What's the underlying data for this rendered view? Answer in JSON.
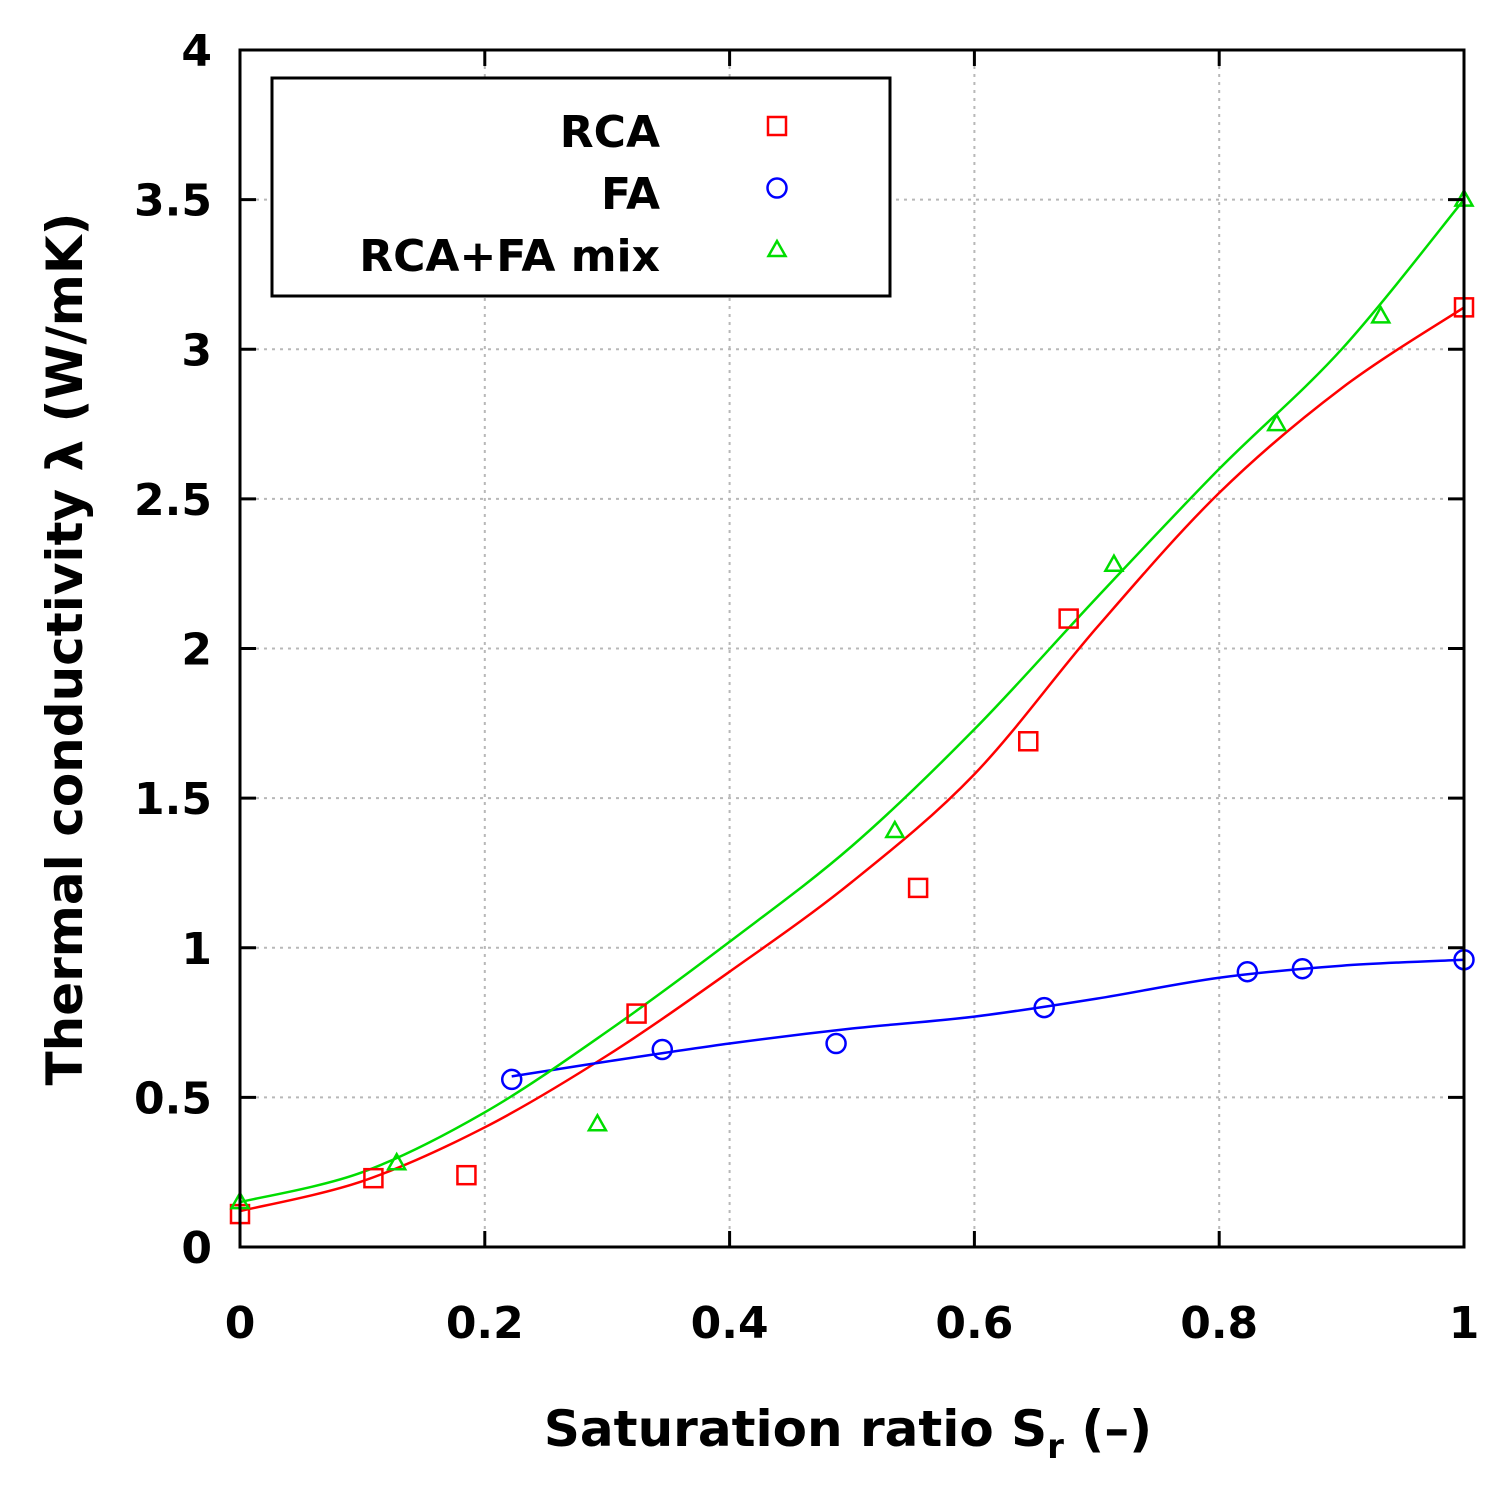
{
  "chart_data": {
    "type": "scatter",
    "title": "",
    "xlabel": "Saturation ratio S",
    "xlabel_subscript": "r",
    "xlabel_suffix": " (–)",
    "ylabel": "Thermal conductivity λ (W/mK)",
    "xlim": [
      0,
      1
    ],
    "ylim": [
      0,
      4
    ],
    "grid": true,
    "legend_position": "top-left",
    "x_ticks": [
      0,
      0.2,
      0.4,
      0.6,
      0.8,
      1
    ],
    "x_tick_labels": [
      "0",
      "0.2",
      "0.4",
      "0.6",
      "0.8",
      "1"
    ],
    "y_ticks": [
      0,
      0.5,
      1,
      1.5,
      2,
      2.5,
      3,
      3.5,
      4
    ],
    "y_tick_labels": [
      "0",
      "0.5",
      "1",
      "1.5",
      "2",
      "2.5",
      "3",
      "3.5",
      "4"
    ],
    "series": [
      {
        "name": "RCA",
        "color": "#ff0000",
        "marker": "square",
        "x": [
          0.0,
          0.109,
          0.185,
          0.324,
          0.554,
          0.644,
          0.677,
          1.0
        ],
        "y": [
          0.11,
          0.23,
          0.24,
          0.78,
          1.2,
          1.69,
          2.1,
          3.14
        ],
        "fit_x": [
          0.0,
          0.1,
          0.2,
          0.3,
          0.4,
          0.5,
          0.6,
          0.7,
          0.8,
          0.9,
          1.0
        ],
        "fit_y": [
          0.12,
          0.22,
          0.4,
          0.64,
          0.92,
          1.22,
          1.58,
          2.07,
          2.52,
          2.87,
          3.14
        ]
      },
      {
        "name": "FA",
        "color": "#0000ff",
        "marker": "circle",
        "x": [
          0.222,
          0.345,
          0.487,
          0.657,
          0.823,
          0.868,
          1.0
        ],
        "y": [
          0.56,
          0.66,
          0.68,
          0.8,
          0.92,
          0.93,
          0.96
        ],
        "fit_x": [
          0.222,
          0.3,
          0.4,
          0.5,
          0.6,
          0.7,
          0.8,
          0.9,
          1.0
        ],
        "fit_y": [
          0.57,
          0.62,
          0.68,
          0.73,
          0.77,
          0.83,
          0.9,
          0.94,
          0.96
        ]
      },
      {
        "name": "RCA+FA mix",
        "color": "#00dd00",
        "marker": "triangle",
        "x": [
          0.0,
          0.128,
          0.292,
          0.535,
          0.714,
          0.847,
          0.932,
          1.0
        ],
        "y": [
          0.15,
          0.28,
          0.41,
          1.39,
          2.28,
          2.75,
          3.11,
          3.5
        ],
        "fit_x": [
          0.0,
          0.1,
          0.2,
          0.3,
          0.4,
          0.5,
          0.6,
          0.7,
          0.8,
          0.9,
          1.0
        ],
        "fit_y": [
          0.15,
          0.25,
          0.45,
          0.72,
          1.02,
          1.34,
          1.73,
          2.17,
          2.6,
          3.0,
          3.5
        ]
      }
    ]
  }
}
